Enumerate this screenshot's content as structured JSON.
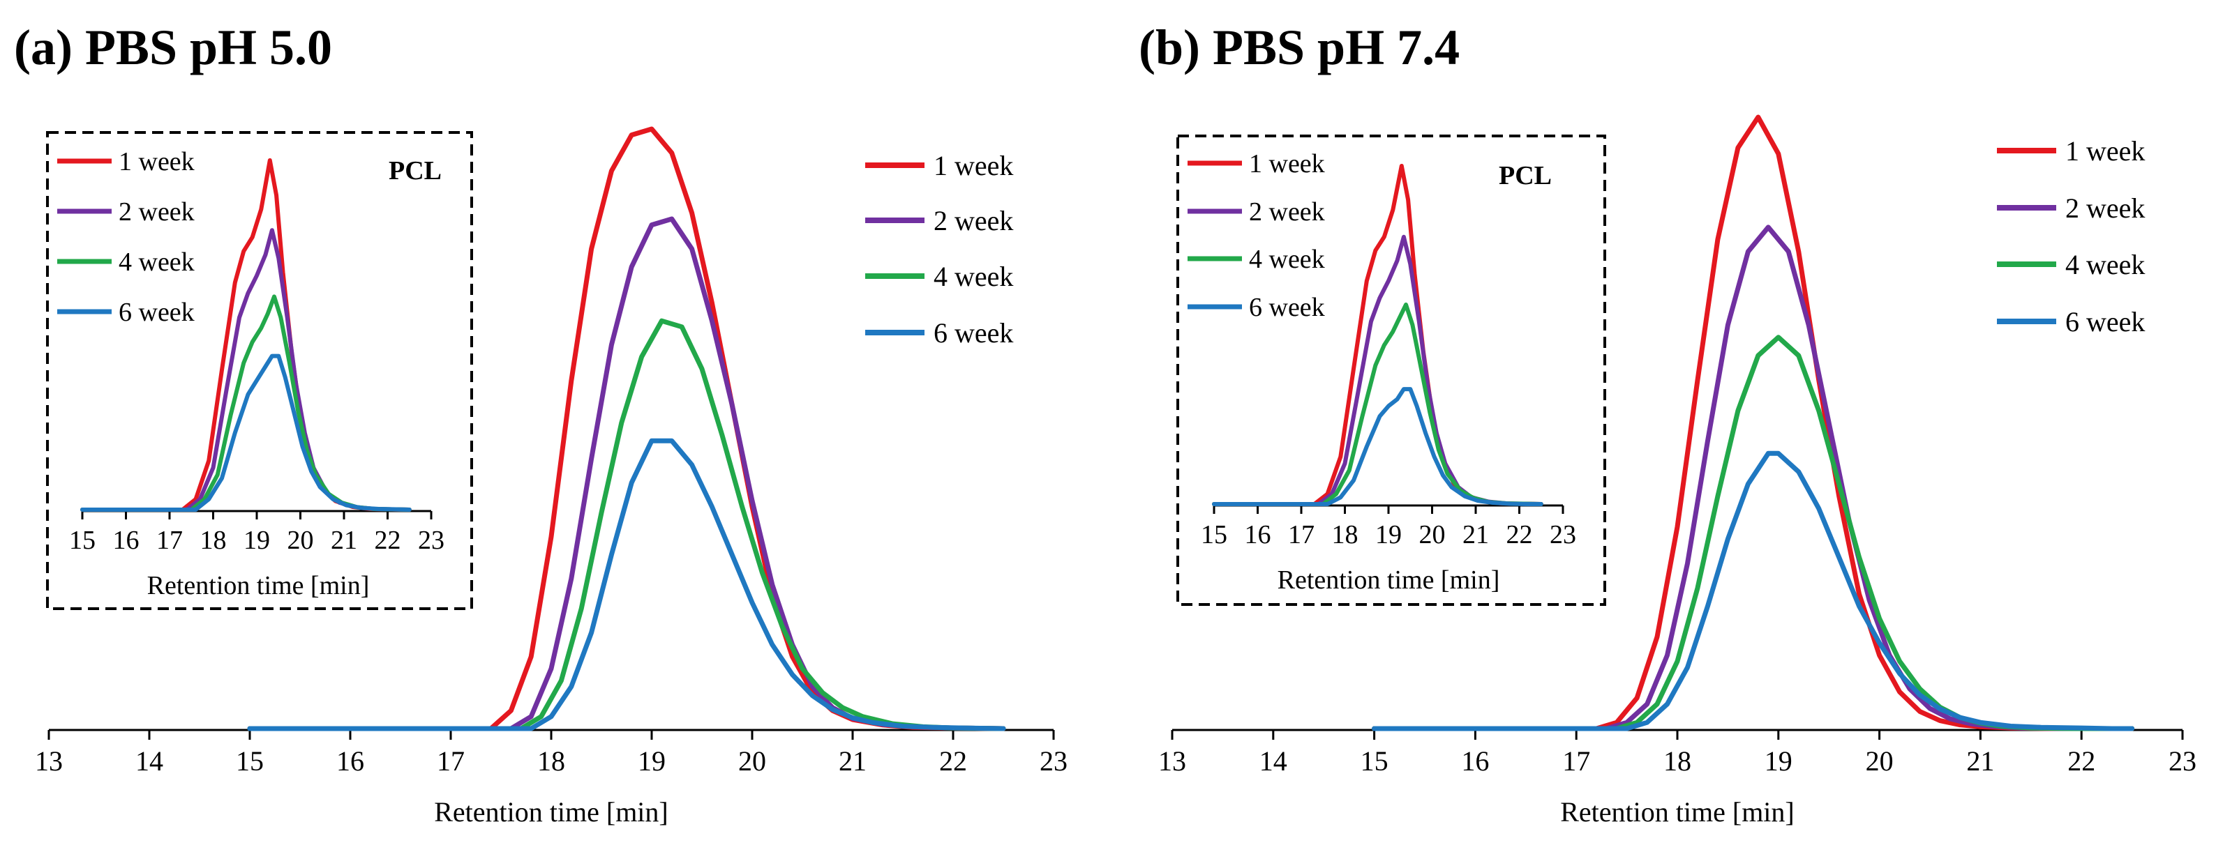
{
  "chart_data": [
    {
      "type": "line",
      "panel_title": "(a) PBS pH 5.0",
      "xlabel": "Retention  time  [min]",
      "ylabel": "",
      "xlim": [
        13,
        23
      ],
      "xticks": [
        "13",
        "14",
        "15",
        "16",
        "17",
        "18",
        "19",
        "20",
        "21",
        "22",
        "23"
      ],
      "series": [
        {
          "name": "1 week",
          "color": "#e4181f",
          "x": [
            15.0,
            17.4,
            17.6,
            17.8,
            18.0,
            18.2,
            18.4,
            18.6,
            18.8,
            19.0,
            19.2,
            19.4,
            19.6,
            19.8,
            20.0,
            20.2,
            20.4,
            20.6,
            20.8,
            21.0,
            21.3,
            21.6,
            22.0,
            22.5
          ],
          "y": [
            0,
            0,
            0.03,
            0.12,
            0.32,
            0.58,
            0.8,
            0.93,
            0.99,
            1.0,
            0.96,
            0.86,
            0.71,
            0.54,
            0.37,
            0.22,
            0.12,
            0.06,
            0.03,
            0.015,
            0.006,
            0.002,
            0.001,
            0
          ]
        },
        {
          "name": "2 week",
          "color": "#7030a0",
          "x": [
            15.0,
            17.6,
            17.8,
            18.0,
            18.2,
            18.4,
            18.6,
            18.8,
            19.0,
            19.2,
            19.4,
            19.6,
            19.8,
            20.0,
            20.2,
            20.4,
            20.6,
            20.8,
            21.0,
            21.3,
            21.6,
            22.0,
            22.5
          ],
          "y": [
            0,
            0,
            0.02,
            0.1,
            0.25,
            0.45,
            0.64,
            0.77,
            0.84,
            0.85,
            0.8,
            0.68,
            0.54,
            0.38,
            0.24,
            0.14,
            0.07,
            0.035,
            0.017,
            0.007,
            0.003,
            0.001,
            0
          ]
        },
        {
          "name": "4 week",
          "color": "#22a84a",
          "x": [
            15.0,
            17.7,
            17.9,
            18.1,
            18.3,
            18.5,
            18.7,
            18.9,
            19.1,
            19.3,
            19.5,
            19.7,
            19.9,
            20.1,
            20.3,
            20.5,
            20.7,
            20.9,
            21.1,
            21.4,
            21.7,
            22.0,
            22.5
          ],
          "y": [
            0,
            0,
            0.02,
            0.08,
            0.2,
            0.36,
            0.51,
            0.62,
            0.68,
            0.67,
            0.6,
            0.49,
            0.37,
            0.26,
            0.17,
            0.1,
            0.06,
            0.035,
            0.02,
            0.008,
            0.003,
            0.001,
            0
          ]
        },
        {
          "name": "6 week",
          "color": "#1f78c1",
          "x": [
            15.0,
            17.8,
            18.0,
            18.2,
            18.4,
            18.6,
            18.8,
            19.0,
            19.2,
            19.4,
            19.6,
            19.8,
            20.0,
            20.2,
            20.4,
            20.6,
            20.8,
            21.0,
            21.2,
            21.5,
            21.8,
            22.1,
            22.5
          ],
          "y": [
            0,
            0,
            0.02,
            0.07,
            0.16,
            0.29,
            0.41,
            0.48,
            0.48,
            0.44,
            0.37,
            0.29,
            0.21,
            0.14,
            0.09,
            0.055,
            0.032,
            0.018,
            0.01,
            0.004,
            0.002,
            0.001,
            0
          ]
        }
      ],
      "inset": {
        "title": "PCL",
        "xlabel": "Retention  time  [min]",
        "xlim": [
          15,
          23
        ],
        "xticks": [
          "15",
          "16",
          "17",
          "18",
          "19",
          "20",
          "21",
          "22",
          "23"
        ],
        "series": [
          {
            "name": "1 week",
            "color": "#e4181f",
            "x": [
              15.0,
              17.3,
              17.6,
              17.9,
              18.2,
              18.5,
              18.7,
              18.9,
              19.1,
              19.3,
              19.45,
              19.6,
              19.8,
              20.0,
              20.2,
              20.5,
              20.8,
              21.2,
              21.6,
              22.0,
              22.5
            ],
            "y": [
              0,
              0,
              0.03,
              0.14,
              0.4,
              0.65,
              0.74,
              0.78,
              0.86,
              1.0,
              0.9,
              0.68,
              0.45,
              0.27,
              0.15,
              0.06,
              0.025,
              0.008,
              0.002,
              0.001,
              0
            ]
          },
          {
            "name": "2 week",
            "color": "#7030a0",
            "x": [
              15.0,
              17.4,
              17.7,
              18.0,
              18.3,
              18.6,
              18.8,
              19.0,
              19.2,
              19.35,
              19.5,
              19.7,
              19.9,
              20.1,
              20.3,
              20.6,
              20.9,
              21.3,
              21.7,
              22.1,
              22.5
            ],
            "y": [
              0,
              0,
              0.03,
              0.12,
              0.34,
              0.55,
              0.62,
              0.67,
              0.73,
              0.8,
              0.72,
              0.55,
              0.36,
              0.22,
              0.12,
              0.05,
              0.02,
              0.007,
              0.002,
              0.001,
              0
            ]
          },
          {
            "name": "4 week",
            "color": "#22a84a",
            "x": [
              15.0,
              17.5,
              17.8,
              18.1,
              18.4,
              18.7,
              18.9,
              19.1,
              19.25,
              19.4,
              19.55,
              19.75,
              19.95,
              20.15,
              20.35,
              20.65,
              20.95,
              21.3,
              21.7,
              22.1,
              22.5
            ],
            "y": [
              0,
              0,
              0.03,
              0.1,
              0.27,
              0.42,
              0.48,
              0.52,
              0.56,
              0.61,
              0.55,
              0.42,
              0.28,
              0.17,
              0.1,
              0.045,
              0.02,
              0.007,
              0.002,
              0.001,
              0
            ]
          },
          {
            "name": "6 week",
            "color": "#1f78c1",
            "x": [
              15.0,
              17.6,
              17.9,
              18.2,
              18.5,
              18.8,
              19.0,
              19.2,
              19.35,
              19.5,
              19.65,
              19.85,
              20.05,
              20.25,
              20.45,
              20.75,
              21.05,
              21.4,
              21.8,
              22.2,
              22.5
            ],
            "y": [
              0,
              0,
              0.03,
              0.09,
              0.22,
              0.33,
              0.37,
              0.41,
              0.44,
              0.44,
              0.38,
              0.28,
              0.18,
              0.11,
              0.065,
              0.03,
              0.013,
              0.005,
              0.002,
              0.001,
              0
            ]
          }
        ]
      }
    },
    {
      "type": "line",
      "panel_title": "(b) PBS pH 7.4",
      "xlabel": "Retention  time  [min]",
      "ylabel": "",
      "xlim": [
        13,
        23
      ],
      "xticks": [
        "13",
        "14",
        "15",
        "16",
        "17",
        "18",
        "19",
        "20",
        "21",
        "22",
        "23"
      ],
      "series": [
        {
          "name": "1 week",
          "color": "#e4181f",
          "x": [
            15.0,
            17.2,
            17.4,
            17.6,
            17.8,
            18.0,
            18.2,
            18.4,
            18.6,
            18.8,
            19.0,
            19.2,
            19.4,
            19.6,
            19.8,
            20.0,
            20.2,
            20.4,
            20.6,
            20.8,
            21.0,
            21.3,
            21.7,
            22.2,
            22.5
          ],
          "y": [
            0,
            0,
            0.01,
            0.05,
            0.15,
            0.33,
            0.57,
            0.8,
            0.95,
            1.0,
            0.94,
            0.78,
            0.57,
            0.38,
            0.22,
            0.12,
            0.06,
            0.028,
            0.013,
            0.006,
            0.003,
            0.001,
            0,
            0,
            0
          ]
        },
        {
          "name": "2 week",
          "color": "#7030a0",
          "x": [
            15.0,
            17.3,
            17.5,
            17.7,
            17.9,
            18.1,
            18.3,
            18.5,
            18.7,
            18.9,
            19.1,
            19.3,
            19.5,
            19.7,
            19.9,
            20.1,
            20.3,
            20.5,
            20.7,
            20.9,
            21.1,
            21.4,
            21.8,
            22.2,
            22.5
          ],
          "y": [
            0,
            0,
            0.01,
            0.04,
            0.12,
            0.27,
            0.47,
            0.66,
            0.78,
            0.82,
            0.78,
            0.66,
            0.5,
            0.34,
            0.21,
            0.12,
            0.065,
            0.033,
            0.016,
            0.008,
            0.004,
            0.001,
            0,
            0,
            0
          ]
        },
        {
          "name": "4 week",
          "color": "#22a84a",
          "x": [
            15.0,
            17.4,
            17.6,
            17.8,
            18.0,
            18.2,
            18.4,
            18.6,
            18.8,
            19.0,
            19.2,
            19.4,
            19.6,
            19.8,
            20.0,
            20.2,
            20.4,
            20.6,
            20.8,
            21.0,
            21.2,
            21.5,
            21.9,
            22.2,
            22.5
          ],
          "y": [
            0,
            0,
            0.01,
            0.04,
            0.11,
            0.23,
            0.38,
            0.52,
            0.61,
            0.64,
            0.61,
            0.52,
            0.4,
            0.28,
            0.18,
            0.11,
            0.065,
            0.035,
            0.018,
            0.009,
            0.004,
            0.001,
            0,
            0,
            0
          ]
        },
        {
          "name": "6 week",
          "color": "#1f78c1",
          "x": [
            15.0,
            17.5,
            17.7,
            17.9,
            18.1,
            18.3,
            18.5,
            18.7,
            18.9,
            19.0,
            19.2,
            19.4,
            19.6,
            19.8,
            20.0,
            20.2,
            20.4,
            20.6,
            20.8,
            21.0,
            21.3,
            21.6,
            22.0,
            22.3,
            22.5
          ],
          "y": [
            0,
            0,
            0.01,
            0.04,
            0.1,
            0.2,
            0.31,
            0.4,
            0.45,
            0.45,
            0.42,
            0.36,
            0.28,
            0.2,
            0.14,
            0.09,
            0.055,
            0.032,
            0.018,
            0.01,
            0.004,
            0.002,
            0.001,
            0,
            0
          ]
        }
      ],
      "inset": {
        "title": "PCL",
        "xlabel": "Retention  time  [min]",
        "xlim": [
          15,
          23
        ],
        "xticks": [
          "15",
          "16",
          "17",
          "18",
          "19",
          "20",
          "21",
          "22",
          "23"
        ],
        "series": [
          {
            "name": "1 week",
            "color": "#e4181f",
            "x": [
              15.0,
              17.3,
              17.6,
              17.9,
              18.2,
              18.5,
              18.7,
              18.9,
              19.1,
              19.3,
              19.45,
              19.6,
              19.8,
              20.0,
              20.2,
              20.5,
              20.8,
              21.2,
              21.6,
              22.0,
              22.5
            ],
            "y": [
              0,
              0,
              0.03,
              0.14,
              0.4,
              0.66,
              0.75,
              0.79,
              0.87,
              1.0,
              0.9,
              0.68,
              0.45,
              0.27,
              0.15,
              0.06,
              0.025,
              0.008,
              0.002,
              0.001,
              0
            ]
          },
          {
            "name": "2 week",
            "color": "#7030a0",
            "x": [
              15.0,
              17.4,
              17.7,
              18.0,
              18.3,
              18.6,
              18.8,
              19.0,
              19.2,
              19.35,
              19.5,
              19.7,
              19.9,
              20.1,
              20.3,
              20.6,
              20.9,
              21.3,
              21.7,
              22.1,
              22.5
            ],
            "y": [
              0,
              0,
              0.03,
              0.12,
              0.33,
              0.54,
              0.61,
              0.66,
              0.72,
              0.79,
              0.71,
              0.54,
              0.35,
              0.21,
              0.12,
              0.05,
              0.02,
              0.007,
              0.002,
              0.001,
              0
            ]
          },
          {
            "name": "4 week",
            "color": "#22a84a",
            "x": [
              15.0,
              17.5,
              17.8,
              18.1,
              18.4,
              18.7,
              18.9,
              19.1,
              19.25,
              19.4,
              19.55,
              19.75,
              19.95,
              20.15,
              20.35,
              20.65,
              20.95,
              21.3,
              21.7,
              22.1,
              22.5
            ],
            "y": [
              0,
              0,
              0.03,
              0.1,
              0.26,
              0.41,
              0.47,
              0.51,
              0.55,
              0.59,
              0.53,
              0.4,
              0.27,
              0.16,
              0.09,
              0.04,
              0.018,
              0.006,
              0.002,
              0.001,
              0
            ]
          },
          {
            "name": "6 week",
            "color": "#1f78c1",
            "x": [
              15.0,
              17.6,
              17.9,
              18.2,
              18.5,
              18.8,
              19.0,
              19.2,
              19.35,
              19.5,
              19.65,
              19.85,
              20.05,
              20.25,
              20.45,
              20.75,
              21.05,
              21.4,
              21.8,
              22.2,
              22.5
            ],
            "y": [
              0,
              0,
              0.02,
              0.07,
              0.17,
              0.26,
              0.29,
              0.31,
              0.34,
              0.34,
              0.29,
              0.21,
              0.14,
              0.085,
              0.05,
              0.023,
              0.01,
              0.004,
              0.001,
              0,
              0
            ]
          }
        ]
      }
    }
  ]
}
